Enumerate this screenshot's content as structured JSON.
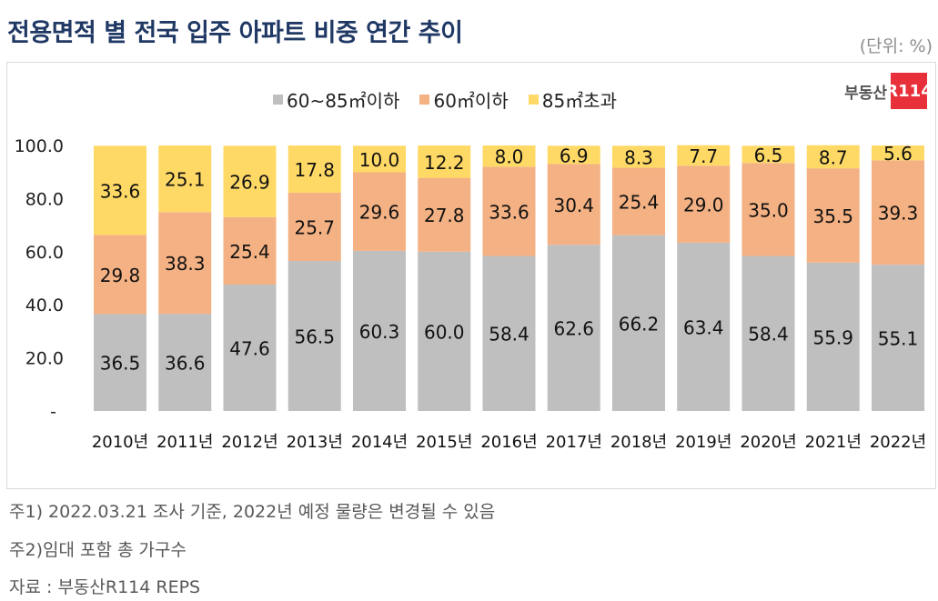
{
  "title": "전용면적 별 전국 입주 아파트 비중 연간 추이",
  "unit": "(단위: %)",
  "logo": {
    "text": "부동산",
    "badge": "R114"
  },
  "notes": [
    "주1) 2022.03.21 조사 기준, 2022년 예정 물량은 변경될 수 있음",
    "주2)임대 포함 총 가구수",
    "자료 : 부동산R114 REPS"
  ],
  "chart_data": {
    "type": "bar",
    "stacked": true,
    "categories": [
      "2010년",
      "2011년",
      "2012년",
      "2013년",
      "2014년",
      "2015년",
      "2016년",
      "2017년",
      "2018년",
      "2019년",
      "2020년",
      "2021년",
      "2022년"
    ],
    "series": [
      {
        "name": "60~85㎡이하",
        "color": "#bfbfbf",
        "values": [
          36.5,
          36.6,
          47.6,
          56.5,
          60.3,
          60.0,
          58.4,
          62.6,
          66.2,
          63.4,
          58.4,
          55.9,
          55.1
        ]
      },
      {
        "name": "60㎡이하",
        "color": "#f4b183",
        "values": [
          29.8,
          38.3,
          25.4,
          25.7,
          29.6,
          27.8,
          33.6,
          30.4,
          25.4,
          29.0,
          35.0,
          35.5,
          39.3
        ]
      },
      {
        "name": "85㎡초과",
        "color": "#ffd966",
        "values": [
          33.6,
          25.1,
          26.9,
          17.8,
          10.0,
          12.2,
          8.0,
          6.9,
          8.3,
          7.7,
          6.5,
          8.7,
          5.6
        ]
      }
    ],
    "yticks": [
      "-",
      "20.0",
      "40.0",
      "60.0",
      "80.0",
      "100.0"
    ],
    "ylim": [
      0,
      100
    ],
    "grid": false,
    "legend": "top-center"
  }
}
